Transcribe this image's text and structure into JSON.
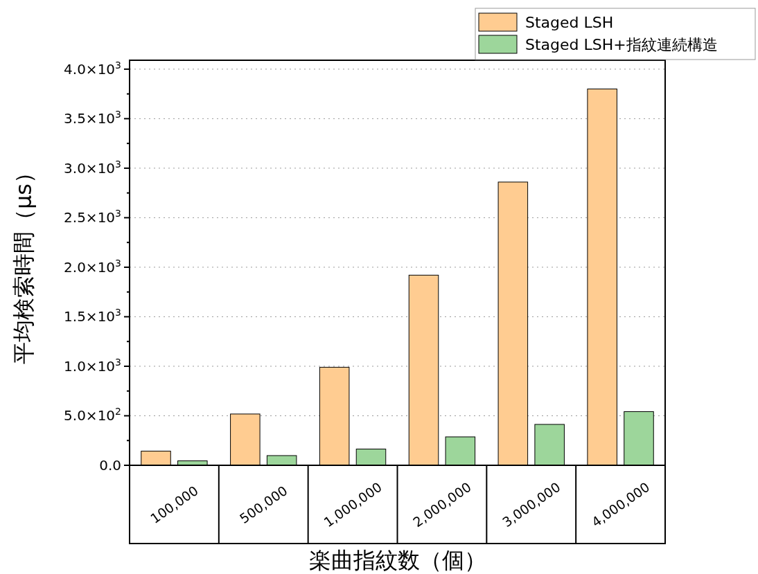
{
  "chart_data": {
    "type": "bar",
    "categories": [
      "100,000",
      "500,000",
      "1,000,000",
      "2,000,000",
      "3,000,000",
      "4,000,000"
    ],
    "series": [
      {
        "name": "Staged LSH",
        "color": "#ffcc91",
        "values": [
          143,
          518,
          990,
          1920,
          2860,
          3800
        ]
      },
      {
        "name": "Staged LSH+指紋連続構造",
        "color": "#9dd69b",
        "values": [
          45,
          98,
          164,
          287,
          413,
          542
        ]
      }
    ],
    "xlabel": "楽曲指紋数（個）",
    "ylabel": "平均検索時間（μs）",
    "ylim": [
      0,
      4090
    ],
    "yticks": [
      {
        "value": 0,
        "label": "0.0"
      },
      {
        "value": 250,
        "label": null
      },
      {
        "value": 500,
        "label": "5.0×10$^{2}$"
      },
      {
        "value": 750,
        "label": null
      },
      {
        "value": 1000,
        "label": "1.0×10$^{3}$"
      },
      {
        "value": 1250,
        "label": null
      },
      {
        "value": 1500,
        "label": "1.5×10$^{3}$"
      },
      {
        "value": 1750,
        "label": null
      },
      {
        "value": 2000,
        "label": "2.0×10$^{3}$"
      },
      {
        "value": 2250,
        "label": null
      },
      {
        "value": 2500,
        "label": "2.5×10$^{3}$"
      },
      {
        "value": 2750,
        "label": null
      },
      {
        "value": 3000,
        "label": "3.0×10$^{3}$"
      },
      {
        "value": 3250,
        "label": null
      },
      {
        "value": 3500,
        "label": "3.5×10$^{3}$"
      },
      {
        "value": 3750,
        "label": null
      },
      {
        "value": 4000,
        "label": "4.0×10$^{3}$"
      }
    ],
    "grid": "y",
    "legend": "top right"
  }
}
